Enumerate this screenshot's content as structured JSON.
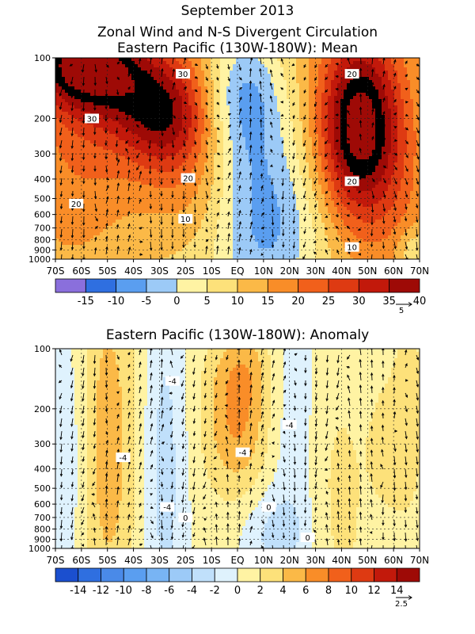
{
  "header": {
    "date": "September 2013",
    "title_line1": "Zonal Wind and N-S Divergent Circulation"
  },
  "chart_data": [
    {
      "type": "heatmap",
      "title": "Eastern Pacific (130W-180W): Mean",
      "x_ticks": [
        "70S",
        "60S",
        "50S",
        "40S",
        "30S",
        "20S",
        "10S",
        "EQ",
        "10N",
        "20N",
        "30N",
        "40N",
        "50N",
        "60N",
        "70N"
      ],
      "y_ticks": [
        100,
        200,
        300,
        400,
        500,
        600,
        700,
        800,
        900,
        1000
      ],
      "xlim": [
        -70,
        70
      ],
      "ylim": [
        1000,
        100
      ],
      "y_scale": "log",
      "grid": true,
      "colorbar": {
        "labels": [
          "-15",
          "-10",
          "-5",
          "0",
          "5",
          "10",
          "15",
          "20",
          "25",
          "30",
          "35",
          "40"
        ],
        "colors": [
          "#8a6fdc",
          "#2f6fe0",
          "#5a9ef0",
          "#9ccaf7",
          "#fff3a3",
          "#fde17a",
          "#fbb947",
          "#f98d28",
          "#f1601b",
          "#de3a12",
          "#c2190b",
          "#9e0a06"
        ]
      },
      "vector_scale_label": "5",
      "contour_labels": [
        {
          "text": "30",
          "x": -21,
          "p": 120
        },
        {
          "text": "30",
          "x": -56,
          "p": 200
        },
        {
          "text": "20",
          "x": -19,
          "p": 395
        },
        {
          "text": "20",
          "x": -62,
          "p": 530
        },
        {
          "text": "10",
          "x": -20,
          "p": 630
        },
        {
          "text": "20",
          "x": 44,
          "p": 120
        },
        {
          "text": "20",
          "x": 44,
          "p": 410
        },
        {
          "text": "10",
          "x": 44,
          "p": 870
        }
      ],
      "features": [
        {
          "x": -60,
          "p": 105,
          "sx": 14,
          "sl": 0.35,
          "v": 30
        },
        {
          "x": -40,
          "p": 140,
          "sx": 17,
          "sl": 0.45,
          "v": 14
        },
        {
          "x": -28,
          "p": 205,
          "sx": 12,
          "sl": 0.45,
          "v": 20
        },
        {
          "x": -60,
          "p": 250,
          "sx": 15,
          "sl": 1.0,
          "v": 8
        },
        {
          "x": -15,
          "p": 400,
          "sx": 12,
          "sl": 0.7,
          "v": 6
        },
        {
          "x": 2,
          "p": 150,
          "sx": 11,
          "sl": 0.55,
          "v": -15
        },
        {
          "x": 8,
          "p": 600,
          "sx": 15,
          "sl": 0.9,
          "v": -17
        },
        {
          "x": 26,
          "p": 800,
          "sx": 12,
          "sl": 0.6,
          "v": -4
        },
        {
          "x": 47,
          "p": 220,
          "sx": 11,
          "sl": 0.75,
          "v": 38
        },
        {
          "x": 63,
          "p": 550,
          "sx": 8,
          "sl": 0.9,
          "v": 4
        },
        {
          "x": 68,
          "p": 920,
          "sx": 5,
          "sl": 0.2,
          "v": -9
        },
        {
          "x": -30,
          "p": 980,
          "sx": 20,
          "sl": 0.3,
          "v": -3
        }
      ],
      "base": 7
    },
    {
      "type": "heatmap",
      "title": "Eastern Pacific (130W-180W): Anomaly",
      "x_ticks": [
        "70S",
        "60S",
        "50S",
        "40S",
        "30S",
        "20S",
        "10S",
        "EQ",
        "10N",
        "20N",
        "30N",
        "40N",
        "50N",
        "60N",
        "70N"
      ],
      "y_ticks": [
        100,
        200,
        300,
        400,
        500,
        600,
        700,
        800,
        900,
        1000
      ],
      "xlim": [
        -70,
        70
      ],
      "ylim": [
        1000,
        100
      ],
      "y_scale": "log",
      "grid": true,
      "colorbar": {
        "labels": [
          "-14",
          "-12",
          "-10",
          "-8",
          "-6",
          "-4",
          "-2",
          "0",
          "2",
          "4",
          "6",
          "8",
          "10",
          "12",
          "14"
        ],
        "colors": [
          "#1b4fcf",
          "#2f6fe0",
          "#4a8ae8",
          "#5a9ef0",
          "#78b4f4",
          "#9ccaf7",
          "#c0e0fb",
          "#dff2fd",
          "#fff3a3",
          "#fde17a",
          "#fbb947",
          "#f98d28",
          "#f1601b",
          "#de3a12",
          "#c2190b",
          "#9e0a06"
        ]
      },
      "vector_scale_label": "2.5",
      "contour_labels": [
        {
          "text": "-4",
          "x": -25,
          "p": 145
        },
        {
          "text": "-4",
          "x": -44,
          "p": 350
        },
        {
          "text": "-4",
          "x": 20,
          "p": 240
        },
        {
          "text": "-4",
          "x": 2,
          "p": 330
        },
        {
          "text": "-4",
          "x": -27,
          "p": 620
        },
        {
          "text": "0",
          "x": -20,
          "p": 700
        },
        {
          "text": "0",
          "x": 12,
          "p": 620
        },
        {
          "text": "0",
          "x": 27,
          "p": 880
        }
      ],
      "features": [
        {
          "x": -50,
          "p": 300,
          "sx": 8,
          "sl": 1.5,
          "v": 4.5
        },
        {
          "x": -28,
          "p": 400,
          "sx": 6,
          "sl": 1.6,
          "v": -3.5
        },
        {
          "x": 0,
          "p": 230,
          "sx": 9,
          "sl": 0.6,
          "v": 5.5
        },
        {
          "x": 3,
          "p": 120,
          "sx": 8,
          "sl": 0.35,
          "v": 2.5
        },
        {
          "x": -65,
          "p": 350,
          "sx": 6,
          "sl": 1.2,
          "v": -2.5
        },
        {
          "x": 22,
          "p": 250,
          "sx": 8,
          "sl": 1.4,
          "v": -2.5
        },
        {
          "x": 15,
          "p": 850,
          "sx": 10,
          "sl": 0.35,
          "v": -3
        },
        {
          "x": 36,
          "p": 600,
          "sx": 11,
          "sl": 1.3,
          "v": 2
        },
        {
          "x": 58,
          "p": 300,
          "sx": 5,
          "sl": 0.5,
          "v": 2
        },
        {
          "x": 66,
          "p": 200,
          "sx": 5,
          "sl": 1.0,
          "v": 2
        }
      ],
      "base": 0.7
    }
  ]
}
